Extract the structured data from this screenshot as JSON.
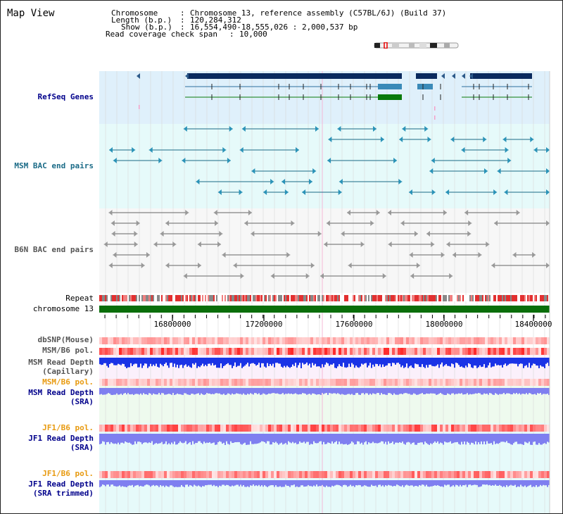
{
  "title": "Map View",
  "info": {
    "chromosome_key": "Chromosome",
    "chromosome_val": "Chromosome 13, reference assembly (C57BL/6J) (Build 37)",
    "length_key": "Length (b.p.)",
    "length_val": "120,284,312",
    "show_key": "Show (b.p.)",
    "show_val": "16,554,490-18,555,026 : 2,000,537 bp",
    "coverage_key": "Read coverage check span",
    "coverage_val": "10,000",
    "sep": ":"
  },
  "tracks": {
    "refseq": "RefSeq Genes",
    "msm_bac": "MSM BAC end pairs",
    "b6n_bac": "B6N BAC end pairs",
    "repeat": "Repeat",
    "chromosome": "chromosome 13",
    "dbsnp": "dbSNP(Mouse)",
    "msm_b6_pol": "MSM/B6 pol.",
    "msm_depth_cap_1": "MSM Read Depth",
    "msm_depth_cap_2": "(Capillary)",
    "msm_b6_pol_sra": "MSM/B6 pol.",
    "msm_depth_sra_1": "MSM Read Depth",
    "msm_depth_sra_2": "(SRA)",
    "jf1_b6_pol": "JF1/B6 pol.",
    "jf1_depth_sra_1": "JF1 Read Depth",
    "jf1_depth_sra_2": "(SRA)",
    "jf1_b6_pol_trim": "JF1/B6 pol.",
    "jf1_depth_trim_1": "JF1 Read Depth",
    "jf1_depth_trim_2": "(SRA trimmed)"
  },
  "axis": {
    "ticks": [
      "16800000",
      "17200000",
      "17600000",
      "18000000",
      "18400000"
    ]
  },
  "colors": {
    "navy": "#00008b",
    "teal": "#1b6b87",
    "orange": "#e89a10",
    "gene_dark": "#0a2a5e",
    "gene_mid": "#3a8ab8",
    "gene_green": "#0a7a0a",
    "chrom_green": "#0a6e0a",
    "depth_blue": "#1a33e6",
    "depth_light": "#7f7ff0"
  }
}
